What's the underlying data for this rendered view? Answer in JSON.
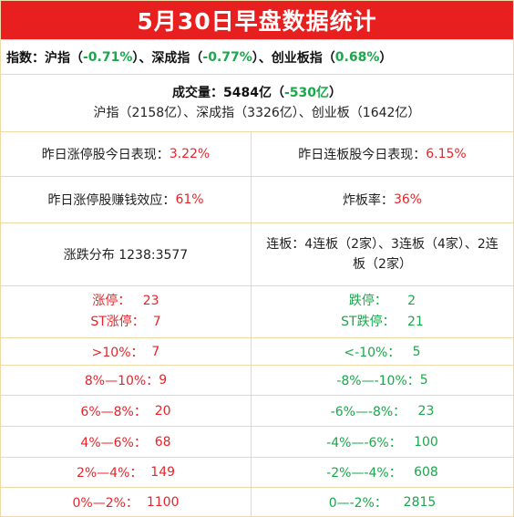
{
  "title": "5月30日早盘数据统计",
  "indices": {
    "prefix": "指数：沪指（",
    "sh": "-0.71%",
    "mid1": "）、深成指（",
    "sz": "-0.77%",
    "mid2": "）、创业板指（",
    "cy": "0.68%",
    "suffix": "）"
  },
  "volume": {
    "label": "成交量：5484亿（",
    "change": "-530亿",
    "suffix": "）",
    "breakdown": "沪指（2158亿）、深成指（3326亿）、创业板（1642亿）"
  },
  "stats": {
    "yest_limit_label": "昨日涨停股今日表现：",
    "yest_limit_value": "3.22%",
    "yest_consec_label": "昨日连板股今日表现：",
    "yest_consec_value": "6.15%",
    "profit_label": "昨日涨停股赚钱效应：",
    "profit_value": "61%",
    "blast_label": "炸板率：",
    "blast_value": "36%",
    "distribution": "涨跌分布 1238:3577",
    "consec_detail": "连板：4连板（2家）、3连板（4家）、2连板（2家）"
  },
  "limit": {
    "up_label": "涨停：",
    "up_value": "23",
    "st_up_label": "ST涨停：",
    "st_up_value": "7",
    "down_label": "跌停：",
    "down_value": "2",
    "st_down_label": "ST跌停：",
    "st_down_value": "21"
  },
  "buckets": [
    {
      "up_label": ">10%：",
      "up_value": "7",
      "down_label": "<-10%：",
      "down_value": "5"
    },
    {
      "up_label": "8%—10%：",
      "up_value": "9",
      "down_label": "-8%—-10%：",
      "down_value": "5"
    },
    {
      "up_label": "6%—8%：",
      "up_value": "20",
      "down_label": "-6%—-8%：",
      "down_value": "23"
    },
    {
      "up_label": "4%—6%：",
      "up_value": "68",
      "down_label": "-4%—-6%：",
      "down_value": "100"
    },
    {
      "up_label": "2%—4%：",
      "up_value": "149",
      "down_label": "-2%—-4%：",
      "down_value": "608"
    },
    {
      "up_label": "0%—2%：",
      "up_value": "1100",
      "down_label": "0—-2%：",
      "down_value": "2815"
    }
  ],
  "colors": {
    "title_bg": "#e81f1f",
    "up": "#e8242a",
    "down": "#19a84a",
    "grid": "#f0d9a8"
  }
}
